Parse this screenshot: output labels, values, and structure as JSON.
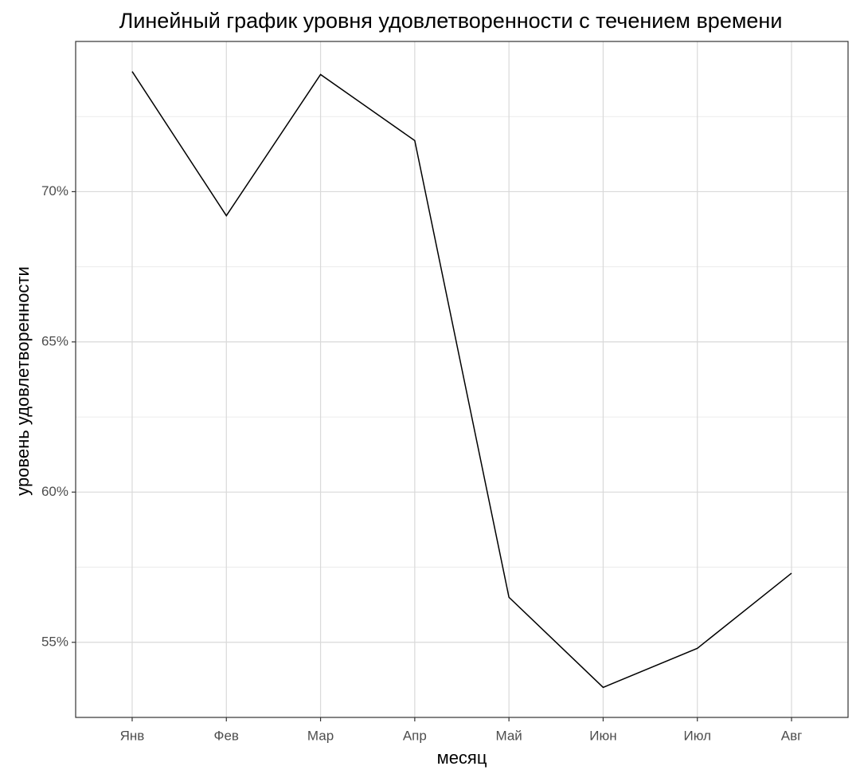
{
  "chart_data": {
    "type": "line",
    "title": "Линейный график уровня удовлетворенности с течением времени",
    "x_label": "месяц",
    "y_label": "уровень удовлетворенности",
    "categories": [
      "Янв",
      "Фев",
      "Мар",
      "Апр",
      "Май",
      "Июн",
      "Июл",
      "Авг"
    ],
    "series": [
      {
        "color": "#000000",
        "values": [
          74.0,
          69.2,
          73.9,
          71.7,
          56.5,
          53.5,
          54.8,
          57.3
        ]
      }
    ],
    "ylim": [
      52.5,
      75.0
    ],
    "yticks": [
      {
        "value": 55,
        "label": "55%"
      },
      {
        "value": 60,
        "label": "60%"
      },
      {
        "value": 65,
        "label": "65%"
      },
      {
        "value": 70,
        "label": "70%"
      }
    ],
    "grid": true
  }
}
